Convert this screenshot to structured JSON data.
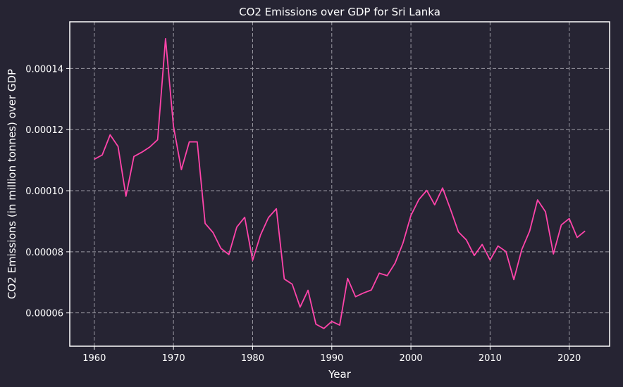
{
  "chart_data": {
    "type": "line",
    "title": "CO2 Emissions over GDP for Sri Lanka",
    "xlabel": "Year",
    "ylabel": "CO2 Emissions (in million tonnes) over GDP",
    "xlim": [
      1956.9,
      2025.1
    ],
    "ylim": [
      4.91e-05,
      0.0001553
    ],
    "x_ticks": [
      1960,
      1970,
      1980,
      1990,
      2000,
      2010,
      2020
    ],
    "x_tick_labels": [
      "1960",
      "1970",
      "1980",
      "1990",
      "2000",
      "2010",
      "2020"
    ],
    "y_ticks": [
      6e-05,
      8e-05,
      0.0001,
      0.00012,
      0.00014
    ],
    "y_tick_labels": [
      "0.00006",
      "0.00008",
      "0.00010",
      "0.00012",
      "0.00014"
    ],
    "grid": true,
    "series": [
      {
        "color": "#ff44aa",
        "x": [
          1960,
          1961,
          1962,
          1963,
          1964,
          1965,
          1966,
          1967,
          1968,
          1969,
          1970,
          1971,
          1972,
          1973,
          1974,
          1975,
          1976,
          1977,
          1978,
          1979,
          1980,
          1981,
          1982,
          1983,
          1984,
          1985,
          1986,
          1987,
          1988,
          1989,
          1990,
          1991,
          1992,
          1993,
          1994,
          1995,
          1996,
          1997,
          1998,
          1999,
          2000,
          2001,
          2002,
          2003,
          2004,
          2005,
          2006,
          2007,
          2008,
          2009,
          2010,
          2011,
          2012,
          2013,
          2014,
          2015,
          2016,
          2017,
          2018,
          2019,
          2020,
          2021,
          2022
        ],
        "values": [
          0.0001103,
          0.0001117,
          0.0001183,
          0.0001145,
          9.82e-05,
          0.0001112,
          0.0001126,
          0.0001143,
          0.0001167,
          0.0001498,
          0.0001211,
          0.0001069,
          0.000116,
          0.000116,
          8.93e-05,
          8.63e-05,
          8.11e-05,
          7.91e-05,
          8.81e-05,
          9.13e-05,
          7.72e-05,
          8.55e-05,
          9.12e-05,
          9.41e-05,
          7.11e-05,
          6.94e-05,
          6.19e-05,
          6.74e-05,
          5.63e-05,
          5.49e-05,
          5.72e-05,
          5.6e-05,
          7.13e-05,
          6.53e-05,
          6.65e-05,
          6.75e-05,
          7.3e-05,
          7.22e-05,
          7.63e-05,
          8.29e-05,
          9.19e-05,
          9.71e-05,
          0.0001001,
          9.54e-05,
          0.0001009,
          9.39e-05,
          8.65e-05,
          8.39e-05,
          7.88e-05,
          8.24e-05,
          7.73e-05,
          8.19e-05,
          8.01e-05,
          7.09e-05,
          8.07e-05,
          8.68e-05,
          9.7e-05,
          9.31e-05,
          7.93e-05,
          8.88e-05,
          9.09e-05,
          8.47e-05,
          8.68e-05
        ]
      }
    ]
  },
  "colors": {
    "background": "#262433",
    "axes_frame": "#ffffff",
    "grid": "#9a99a3",
    "text": "#ffffff",
    "line": "#ff44aa"
  }
}
